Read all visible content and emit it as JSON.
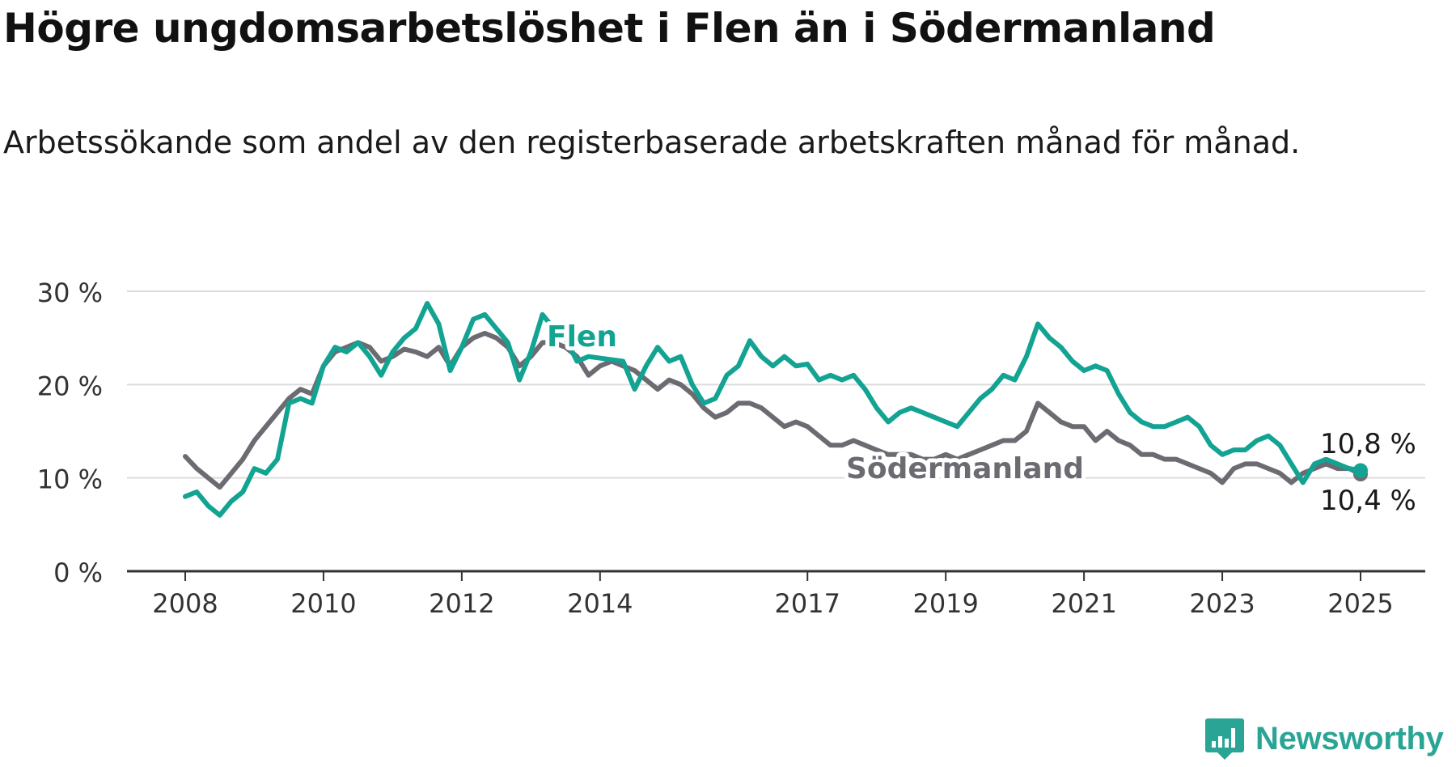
{
  "header": {
    "title": "Högre ungdomsarbetslöshet i Flen än i Södermanland",
    "subtitle": "Arbetssökande som andel av den registerbaserade arbetskraften månad för månad."
  },
  "branding": {
    "name": "Newsworthy"
  },
  "chart_data": {
    "type": "line",
    "title": "Högre ungdomsarbetslöshet i Flen än i Södermanland",
    "subtitle": "Arbetssökande som andel av den registerbaserade arbetskraften månad för månad.",
    "xlabel": "",
    "ylabel": "",
    "x_ticks": [
      "2008",
      "2010",
      "2012",
      "2014",
      "2017",
      "2019",
      "2021",
      "2023",
      "2025"
    ],
    "y_ticks": [
      "0 %",
      "10 %",
      "20 %",
      "30 %"
    ],
    "ylim": [
      0,
      30
    ],
    "xlim": [
      "2008-01",
      "2025-01"
    ],
    "grid": true,
    "colors": {
      "Flen": "#13a393",
      "Södermanland": "#6d6b72",
      "grid": "#dcdcdc",
      "axis": "#333333"
    },
    "series": [
      {
        "name": "Flen",
        "label": "Flen",
        "end_label": "10,8 %",
        "points": [
          [
            "2008-01",
            8.0
          ],
          [
            "2008-03",
            8.5
          ],
          [
            "2008-05",
            7.0
          ],
          [
            "2008-07",
            6.0
          ],
          [
            "2008-09",
            7.5
          ],
          [
            "2008-11",
            8.5
          ],
          [
            "2009-01",
            11.0
          ],
          [
            "2009-03",
            10.5
          ],
          [
            "2009-05",
            12.0
          ],
          [
            "2009-07",
            18.0
          ],
          [
            "2009-09",
            18.5
          ],
          [
            "2009-11",
            18.0
          ],
          [
            "2010-01",
            22.0
          ],
          [
            "2010-03",
            24.0
          ],
          [
            "2010-05",
            23.5
          ],
          [
            "2010-07",
            24.5
          ],
          [
            "2010-09",
            23.0
          ],
          [
            "2010-11",
            21.0
          ],
          [
            "2011-01",
            23.5
          ],
          [
            "2011-03",
            25.0
          ],
          [
            "2011-05",
            26.0
          ],
          [
            "2011-07",
            28.7
          ],
          [
            "2011-09",
            26.5
          ],
          [
            "2011-11",
            21.5
          ],
          [
            "2012-01",
            24.0
          ],
          [
            "2012-03",
            27.0
          ],
          [
            "2012-05",
            27.5
          ],
          [
            "2012-07",
            26.0
          ],
          [
            "2012-09",
            24.5
          ],
          [
            "2012-11",
            20.5
          ],
          [
            "2013-01",
            23.5
          ],
          [
            "2013-03",
            27.5
          ],
          [
            "2013-05",
            26.0
          ],
          [
            "2013-07",
            25.0
          ],
          [
            "2013-09",
            22.5
          ],
          [
            "2013-11",
            23.0
          ],
          [
            "2014-05",
            22.5
          ],
          [
            "2014-07",
            19.5
          ],
          [
            "2014-09",
            22.0
          ],
          [
            "2014-11",
            24.0
          ],
          [
            "2015-01",
            22.5
          ],
          [
            "2015-03",
            23.0
          ],
          [
            "2015-05",
            20.0
          ],
          [
            "2015-07",
            18.0
          ],
          [
            "2015-09",
            18.5
          ],
          [
            "2015-11",
            21.0
          ],
          [
            "2016-01",
            22.0
          ],
          [
            "2016-03",
            24.7
          ],
          [
            "2016-05",
            23.0
          ],
          [
            "2016-07",
            22.0
          ],
          [
            "2016-09",
            23.0
          ],
          [
            "2016-11",
            22.0
          ],
          [
            "2017-01",
            22.2
          ],
          [
            "2017-03",
            20.5
          ],
          [
            "2017-05",
            21.0
          ],
          [
            "2017-07",
            20.5
          ],
          [
            "2017-09",
            21.0
          ],
          [
            "2017-11",
            19.5
          ],
          [
            "2018-01",
            17.5
          ],
          [
            "2018-03",
            16.0
          ],
          [
            "2018-05",
            17.0
          ],
          [
            "2018-07",
            17.5
          ],
          [
            "2018-09",
            17.0
          ],
          [
            "2018-11",
            16.5
          ],
          [
            "2019-01",
            16.0
          ],
          [
            "2019-03",
            15.5
          ],
          [
            "2019-05",
            17.0
          ],
          [
            "2019-07",
            18.5
          ],
          [
            "2019-09",
            19.5
          ],
          [
            "2019-11",
            21.0
          ],
          [
            "2020-01",
            20.5
          ],
          [
            "2020-03",
            23.0
          ],
          [
            "2020-05",
            26.5
          ],
          [
            "2020-07",
            25.0
          ],
          [
            "2020-09",
            24.0
          ],
          [
            "2020-11",
            22.5
          ],
          [
            "2021-01",
            21.5
          ],
          [
            "2021-03",
            22.0
          ],
          [
            "2021-05",
            21.5
          ],
          [
            "2021-07",
            19.0
          ],
          [
            "2021-09",
            17.0
          ],
          [
            "2021-11",
            16.0
          ],
          [
            "2022-01",
            15.5
          ],
          [
            "2022-03",
            15.5
          ],
          [
            "2022-05",
            16.0
          ],
          [
            "2022-07",
            16.5
          ],
          [
            "2022-09",
            15.5
          ],
          [
            "2022-11",
            13.5
          ],
          [
            "2023-01",
            12.5
          ],
          [
            "2023-03",
            13.0
          ],
          [
            "2023-05",
            13.0
          ],
          [
            "2023-07",
            14.0
          ],
          [
            "2023-09",
            14.5
          ],
          [
            "2023-11",
            13.5
          ],
          [
            "2024-01",
            11.5
          ],
          [
            "2024-03",
            9.5
          ],
          [
            "2024-05",
            11.5
          ],
          [
            "2024-07",
            12.0
          ],
          [
            "2024-09",
            11.5
          ],
          [
            "2024-11",
            11.0
          ],
          [
            "2025-01",
            10.8
          ]
        ]
      },
      {
        "name": "Södermanland",
        "label": "Södermanland",
        "end_label": "10,4 %",
        "points": [
          [
            "2008-01",
            12.3
          ],
          [
            "2008-03",
            11.0
          ],
          [
            "2008-05",
            10.0
          ],
          [
            "2008-07",
            9.0
          ],
          [
            "2008-09",
            10.5
          ],
          [
            "2008-11",
            12.0
          ],
          [
            "2009-01",
            14.0
          ],
          [
            "2009-03",
            15.5
          ],
          [
            "2009-05",
            17.0
          ],
          [
            "2009-07",
            18.5
          ],
          [
            "2009-09",
            19.5
          ],
          [
            "2009-11",
            19.0
          ],
          [
            "2010-01",
            22.0
          ],
          [
            "2010-03",
            23.5
          ],
          [
            "2010-05",
            24.0
          ],
          [
            "2010-07",
            24.5
          ],
          [
            "2010-09",
            24.0
          ],
          [
            "2010-11",
            22.5
          ],
          [
            "2011-01",
            23.0
          ],
          [
            "2011-03",
            23.8
          ],
          [
            "2011-05",
            23.5
          ],
          [
            "2011-07",
            23.0
          ],
          [
            "2011-09",
            24.0
          ],
          [
            "2011-11",
            22.0
          ],
          [
            "2012-01",
            24.0
          ],
          [
            "2012-03",
            25.0
          ],
          [
            "2012-05",
            25.5
          ],
          [
            "2012-07",
            25.0
          ],
          [
            "2012-09",
            24.0
          ],
          [
            "2012-11",
            22.0
          ],
          [
            "2013-01",
            23.0
          ],
          [
            "2013-03",
            24.5
          ],
          [
            "2013-05",
            24.5
          ],
          [
            "2013-07",
            24.0
          ],
          [
            "2013-09",
            23.0
          ],
          [
            "2013-11",
            21.0
          ],
          [
            "2014-01",
            22.0
          ],
          [
            "2014-03",
            22.5
          ],
          [
            "2014-05",
            22.0
          ],
          [
            "2014-07",
            21.5
          ],
          [
            "2014-09",
            20.5
          ],
          [
            "2014-11",
            19.5
          ],
          [
            "2015-01",
            20.5
          ],
          [
            "2015-03",
            20.0
          ],
          [
            "2015-05",
            19.0
          ],
          [
            "2015-07",
            17.5
          ],
          [
            "2015-09",
            16.5
          ],
          [
            "2015-11",
            17.0
          ],
          [
            "2016-01",
            18.0
          ],
          [
            "2016-03",
            18.0
          ],
          [
            "2016-05",
            17.5
          ],
          [
            "2016-07",
            16.5
          ],
          [
            "2016-09",
            15.5
          ],
          [
            "2016-11",
            16.0
          ],
          [
            "2017-01",
            15.5
          ],
          [
            "2017-03",
            14.5
          ],
          [
            "2017-05",
            13.5
          ],
          [
            "2017-07",
            13.5
          ],
          [
            "2017-09",
            14.0
          ],
          [
            "2017-11",
            13.5
          ],
          [
            "2018-01",
            13.0
          ],
          [
            "2018-03",
            12.5
          ],
          [
            "2018-05",
            12.5
          ],
          [
            "2018-07",
            12.5
          ],
          [
            "2018-09",
            12.0
          ],
          [
            "2018-11",
            12.0
          ],
          [
            "2019-01",
            12.5
          ],
          [
            "2019-03",
            12.0
          ],
          [
            "2019-05",
            12.5
          ],
          [
            "2019-07",
            13.0
          ],
          [
            "2019-09",
            13.5
          ],
          [
            "2019-11",
            14.0
          ],
          [
            "2020-01",
            14.0
          ],
          [
            "2020-03",
            15.0
          ],
          [
            "2020-05",
            18.0
          ],
          [
            "2020-07",
            17.0
          ],
          [
            "2020-09",
            16.0
          ],
          [
            "2020-11",
            15.5
          ],
          [
            "2021-01",
            15.5
          ],
          [
            "2021-03",
            14.0
          ],
          [
            "2021-05",
            15.0
          ],
          [
            "2021-07",
            14.0
          ],
          [
            "2021-09",
            13.5
          ],
          [
            "2021-11",
            12.5
          ],
          [
            "2022-01",
            12.5
          ],
          [
            "2022-03",
            12.0
          ],
          [
            "2022-05",
            12.0
          ],
          [
            "2022-07",
            11.5
          ],
          [
            "2022-09",
            11.0
          ],
          [
            "2022-11",
            10.5
          ],
          [
            "2023-01",
            9.5
          ],
          [
            "2023-03",
            11.0
          ],
          [
            "2023-05",
            11.5
          ],
          [
            "2023-07",
            11.5
          ],
          [
            "2023-09",
            11.0
          ],
          [
            "2023-11",
            10.5
          ],
          [
            "2024-01",
            9.5
          ],
          [
            "2024-03",
            10.5
          ],
          [
            "2024-05",
            11.0
          ],
          [
            "2024-07",
            11.5
          ],
          [
            "2024-09",
            11.0
          ],
          [
            "2024-11",
            11.0
          ],
          [
            "2025-01",
            10.4
          ]
        ]
      }
    ]
  }
}
